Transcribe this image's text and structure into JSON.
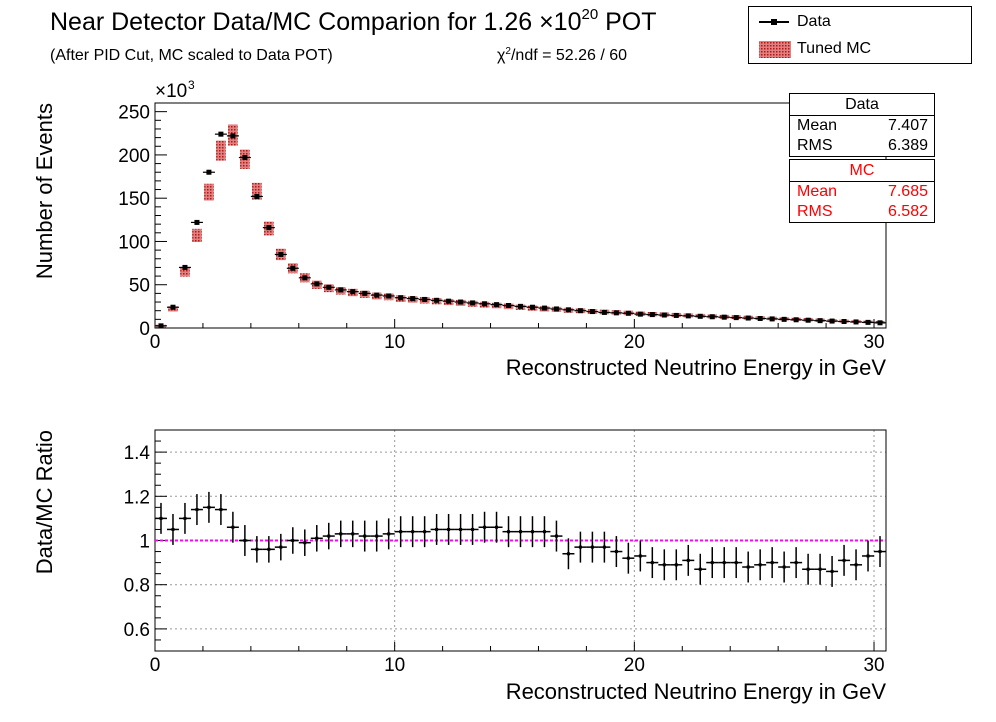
{
  "title": {
    "main": "Near Detector Data/MC Comparion for 1.26 ×10",
    "main_sup": "20",
    "main_suffix": " POT",
    "subtitle": "(After PID Cut, MC scaled to Data POT)",
    "chi2_prefix": "χ",
    "chi2_sup": "2",
    "chi2_text": "/ndf = 52.26 / 60"
  },
  "legend": {
    "data_label": "Data",
    "mc_label": "Tuned MC"
  },
  "stats": {
    "data": {
      "header": "Data",
      "mean_label": "Mean",
      "mean": "7.407",
      "rms_label": "RMS",
      "rms": "6.389"
    },
    "mc": {
      "header": "MC",
      "mean_label": "Mean",
      "mean": "7.685",
      "rms_label": "RMS",
      "rms": "6.582"
    }
  },
  "colors": {
    "data": "#000000",
    "mc": "#cc2222",
    "unity_line": "#ff00ff",
    "grid": "#888888"
  },
  "chart_data": [
    {
      "type": "bar",
      "title": "",
      "xlabel": "Reconstructed Neutrino Energy in GeV",
      "ylabel": "Number of Events",
      "y_multiplier_label": "×10",
      "y_multiplier_exp": "3",
      "xlim": [
        0,
        30.5
      ],
      "ylim": [
        0,
        260
      ],
      "xticks": [
        0,
        10,
        20,
        30
      ],
      "yticks": [
        0,
        50,
        100,
        150,
        200,
        250
      ],
      "grid": false,
      "legend_position": "top-right",
      "bin_width": 0.5,
      "x": [
        0.25,
        0.75,
        1.25,
        1.75,
        2.25,
        2.75,
        3.25,
        3.75,
        4.25,
        4.75,
        5.25,
        5.75,
        6.25,
        6.75,
        7.25,
        7.75,
        8.25,
        8.75,
        9.25,
        9.75,
        10.25,
        10.75,
        11.25,
        11.75,
        12.25,
        12.75,
        13.25,
        13.75,
        14.25,
        14.75,
        15.25,
        15.75,
        16.25,
        16.75,
        17.25,
        17.75,
        18.25,
        18.75,
        19.25,
        19.75,
        20.25,
        20.75,
        21.25,
        21.75,
        22.25,
        22.75,
        23.25,
        23.75,
        24.25,
        24.75,
        25.25,
        25.75,
        26.25,
        26.75,
        27.25,
        27.75,
        28.25,
        28.75,
        29.25,
        29.75,
        30.25
      ],
      "series": [
        {
          "name": "Data",
          "values": [
            2.5,
            24,
            70,
            122,
            180,
            224,
            222,
            197,
            152,
            116,
            85,
            69,
            58,
            51,
            47,
            44,
            42,
            40,
            38,
            37,
            35,
            34,
            33,
            32,
            31,
            30,
            29,
            28,
            27,
            26,
            25,
            24,
            23,
            22,
            21,
            20,
            19,
            18,
            17.5,
            17,
            16,
            15.5,
            15,
            14.5,
            14,
            13.5,
            13,
            12.5,
            12,
            11.5,
            11,
            10.5,
            10,
            9.5,
            9,
            8.5,
            8,
            7.5,
            7,
            6.5,
            6
          ]
        },
        {
          "name": "Tuned MC",
          "values": [
            2.2,
            22,
            65,
            107,
            157,
            205,
            223,
            195,
            158,
            115,
            85,
            69,
            58,
            50,
            46,
            43,
            41,
            39,
            37,
            36,
            34,
            33,
            32,
            31,
            30,
            29,
            28,
            27,
            26,
            25,
            24,
            23,
            22,
            21.5,
            20.5,
            20,
            19,
            18.5,
            18,
            17.5,
            16.5,
            16,
            15.5,
            15,
            14.5,
            14,
            13.5,
            13,
            12.5,
            12,
            11.5,
            11,
            10.5,
            10,
            9.5,
            9,
            8.5,
            8,
            7.5,
            7,
            6.5
          ]
        }
      ]
    },
    {
      "type": "scatter",
      "title": "",
      "xlabel": "Reconstructed Neutrino Energy in GeV",
      "ylabel": "Data/MC Ratio",
      "xlim": [
        0,
        30.5
      ],
      "ylim": [
        0.5,
        1.5
      ],
      "xticks": [
        0,
        10,
        20,
        30
      ],
      "yticks": [
        0.6,
        0.8,
        1,
        1.2,
        1.4
      ],
      "grid": true,
      "reference_line": 1,
      "bin_width": 0.5,
      "x": [
        0.25,
        0.75,
        1.25,
        1.75,
        2.25,
        2.75,
        3.25,
        3.75,
        4.25,
        4.75,
        5.25,
        5.75,
        6.25,
        6.75,
        7.25,
        7.75,
        8.25,
        8.75,
        9.25,
        9.75,
        10.25,
        10.75,
        11.25,
        11.75,
        12.25,
        12.75,
        13.25,
        13.75,
        14.25,
        14.75,
        15.25,
        15.75,
        16.25,
        16.75,
        17.25,
        17.75,
        18.25,
        18.75,
        19.25,
        19.75,
        20.25,
        20.75,
        21.25,
        21.75,
        22.25,
        22.75,
        23.25,
        23.75,
        24.25,
        24.75,
        25.25,
        25.75,
        26.25,
        26.75,
        27.25,
        27.75,
        28.25,
        28.75,
        29.25,
        29.75,
        30.25
      ],
      "series": [
        {
          "name": "Data",
          "values": [
            1.1,
            1.05,
            1.1,
            1.14,
            1.15,
            1.14,
            1.06,
            1.0,
            0.96,
            0.96,
            0.97,
            1.0,
            0.99,
            1.01,
            1.02,
            1.03,
            1.03,
            1.02,
            1.02,
            1.03,
            1.04,
            1.04,
            1.04,
            1.05,
            1.05,
            1.05,
            1.05,
            1.06,
            1.06,
            1.04,
            1.04,
            1.04,
            1.04,
            1.02,
            0.94,
            0.97,
            0.97,
            0.97,
            0.95,
            0.92,
            0.93,
            0.9,
            0.89,
            0.89,
            0.91,
            0.87,
            0.9,
            0.9,
            0.9,
            0.88,
            0.89,
            0.9,
            0.88,
            0.9,
            0.87,
            0.87,
            0.86,
            0.91,
            0.89,
            0.93,
            0.95
          ],
          "errors": [
            0.07,
            0.07,
            0.07,
            0.07,
            0.07,
            0.07,
            0.07,
            0.07,
            0.06,
            0.06,
            0.06,
            0.06,
            0.06,
            0.06,
            0.06,
            0.06,
            0.06,
            0.07,
            0.07,
            0.07,
            0.07,
            0.07,
            0.07,
            0.07,
            0.07,
            0.07,
            0.07,
            0.07,
            0.07,
            0.07,
            0.07,
            0.07,
            0.07,
            0.07,
            0.07,
            0.07,
            0.07,
            0.07,
            0.07,
            0.07,
            0.07,
            0.07,
            0.07,
            0.07,
            0.07,
            0.07,
            0.07,
            0.07,
            0.07,
            0.07,
            0.07,
            0.07,
            0.07,
            0.07,
            0.07,
            0.07,
            0.07,
            0.07,
            0.07,
            0.07,
            0.07
          ]
        }
      ]
    }
  ]
}
